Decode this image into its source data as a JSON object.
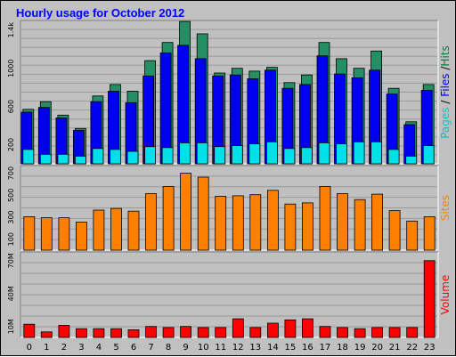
{
  "chart_data": {
    "type": "bar",
    "title": "Hourly usage for October 2012",
    "categories": [
      "0",
      "1",
      "2",
      "3",
      "4",
      "5",
      "6",
      "7",
      "8",
      "9",
      "10",
      "11",
      "12",
      "13",
      "14",
      "15",
      "16",
      "17",
      "18",
      "19",
      "20",
      "21",
      "22",
      "23"
    ],
    "panels": [
      {
        "id": "requests",
        "y_tick_labels": [
          "200",
          "600",
          "1000",
          "1.4k"
        ],
        "y_tick_values": [
          200,
          600,
          1000,
          1400
        ],
        "ylim": [
          0,
          1500
        ],
        "axis_label": {
          "parts": [
            {
              "text": "Pages",
              "color": "#00c8c8"
            },
            {
              "text": " / ",
              "color": "#000000"
            },
            {
              "text": "Files",
              "color": "#0000ff"
            },
            {
              "text": " /",
              "color": "#000000"
            },
            {
              "text": "Hits",
              "color": "#008040"
            }
          ]
        },
        "series": [
          {
            "name": "Hits",
            "color": "#248f64",
            "values": [
              570,
              650,
              510,
              370,
              710,
              830,
              760,
              1080,
              1270,
              1490,
              1360,
              950,
              1000,
              970,
              1010,
              850,
              930,
              1270,
              1100,
              1000,
              1180,
              790,
              440,
              830
            ]
          },
          {
            "name": "Files",
            "color": "#0000f0",
            "values": [
              540,
              590,
              480,
              350,
              650,
              760,
              640,
              920,
              1160,
              1240,
              1100,
              920,
              930,
              890,
              980,
              790,
              830,
              1130,
              940,
              900,
              980,
              730,
              410,
              770
            ]
          },
          {
            "name": "Pages",
            "color": "#00e0e8",
            "values": [
              150,
              100,
              100,
              80,
              160,
              150,
              130,
              180,
              170,
              220,
              220,
              180,
              190,
              210,
              230,
              160,
              170,
              220,
              210,
              230,
              230,
              150,
              80,
              190
            ]
          }
        ]
      },
      {
        "id": "sites",
        "y_tick_labels": [
          "100",
          "300",
          "500",
          "700"
        ],
        "y_tick_values": [
          100,
          300,
          500,
          700
        ],
        "ylim": [
          0,
          770
        ],
        "axis_label": {
          "parts": [
            {
              "text": "Sites",
              "color": "#ff8000"
            }
          ]
        },
        "series": [
          {
            "name": "Sites",
            "color": "#ff8000",
            "values": [
              305,
              295,
              295,
              255,
              365,
              380,
              355,
              515,
              580,
              700,
              665,
              490,
              495,
              505,
              545,
              420,
              430,
              580,
              515,
              460,
              510,
              360,
              265,
              305
            ]
          }
        ]
      },
      {
        "id": "volume",
        "y_tick_labels": [
          "10M",
          "40M",
          "70M"
        ],
        "y_tick_values": [
          10,
          40,
          70
        ],
        "ylim": [
          0,
          78
        ],
        "axis_label": {
          "parts": [
            {
              "text": "Volume",
              "color": "#ff0000"
            }
          ]
        },
        "series": [
          {
            "name": "Volume",
            "color": "#ff0000",
            "values": [
              12,
              5,
              11,
              8,
              8,
              8,
              7,
              10,
              9,
              10,
              9,
              9,
              17,
              9,
              13,
              16,
              17,
              10,
              9,
              8,
              9,
              9,
              9,
              70
            ]
          }
        ]
      }
    ],
    "grid": true
  }
}
